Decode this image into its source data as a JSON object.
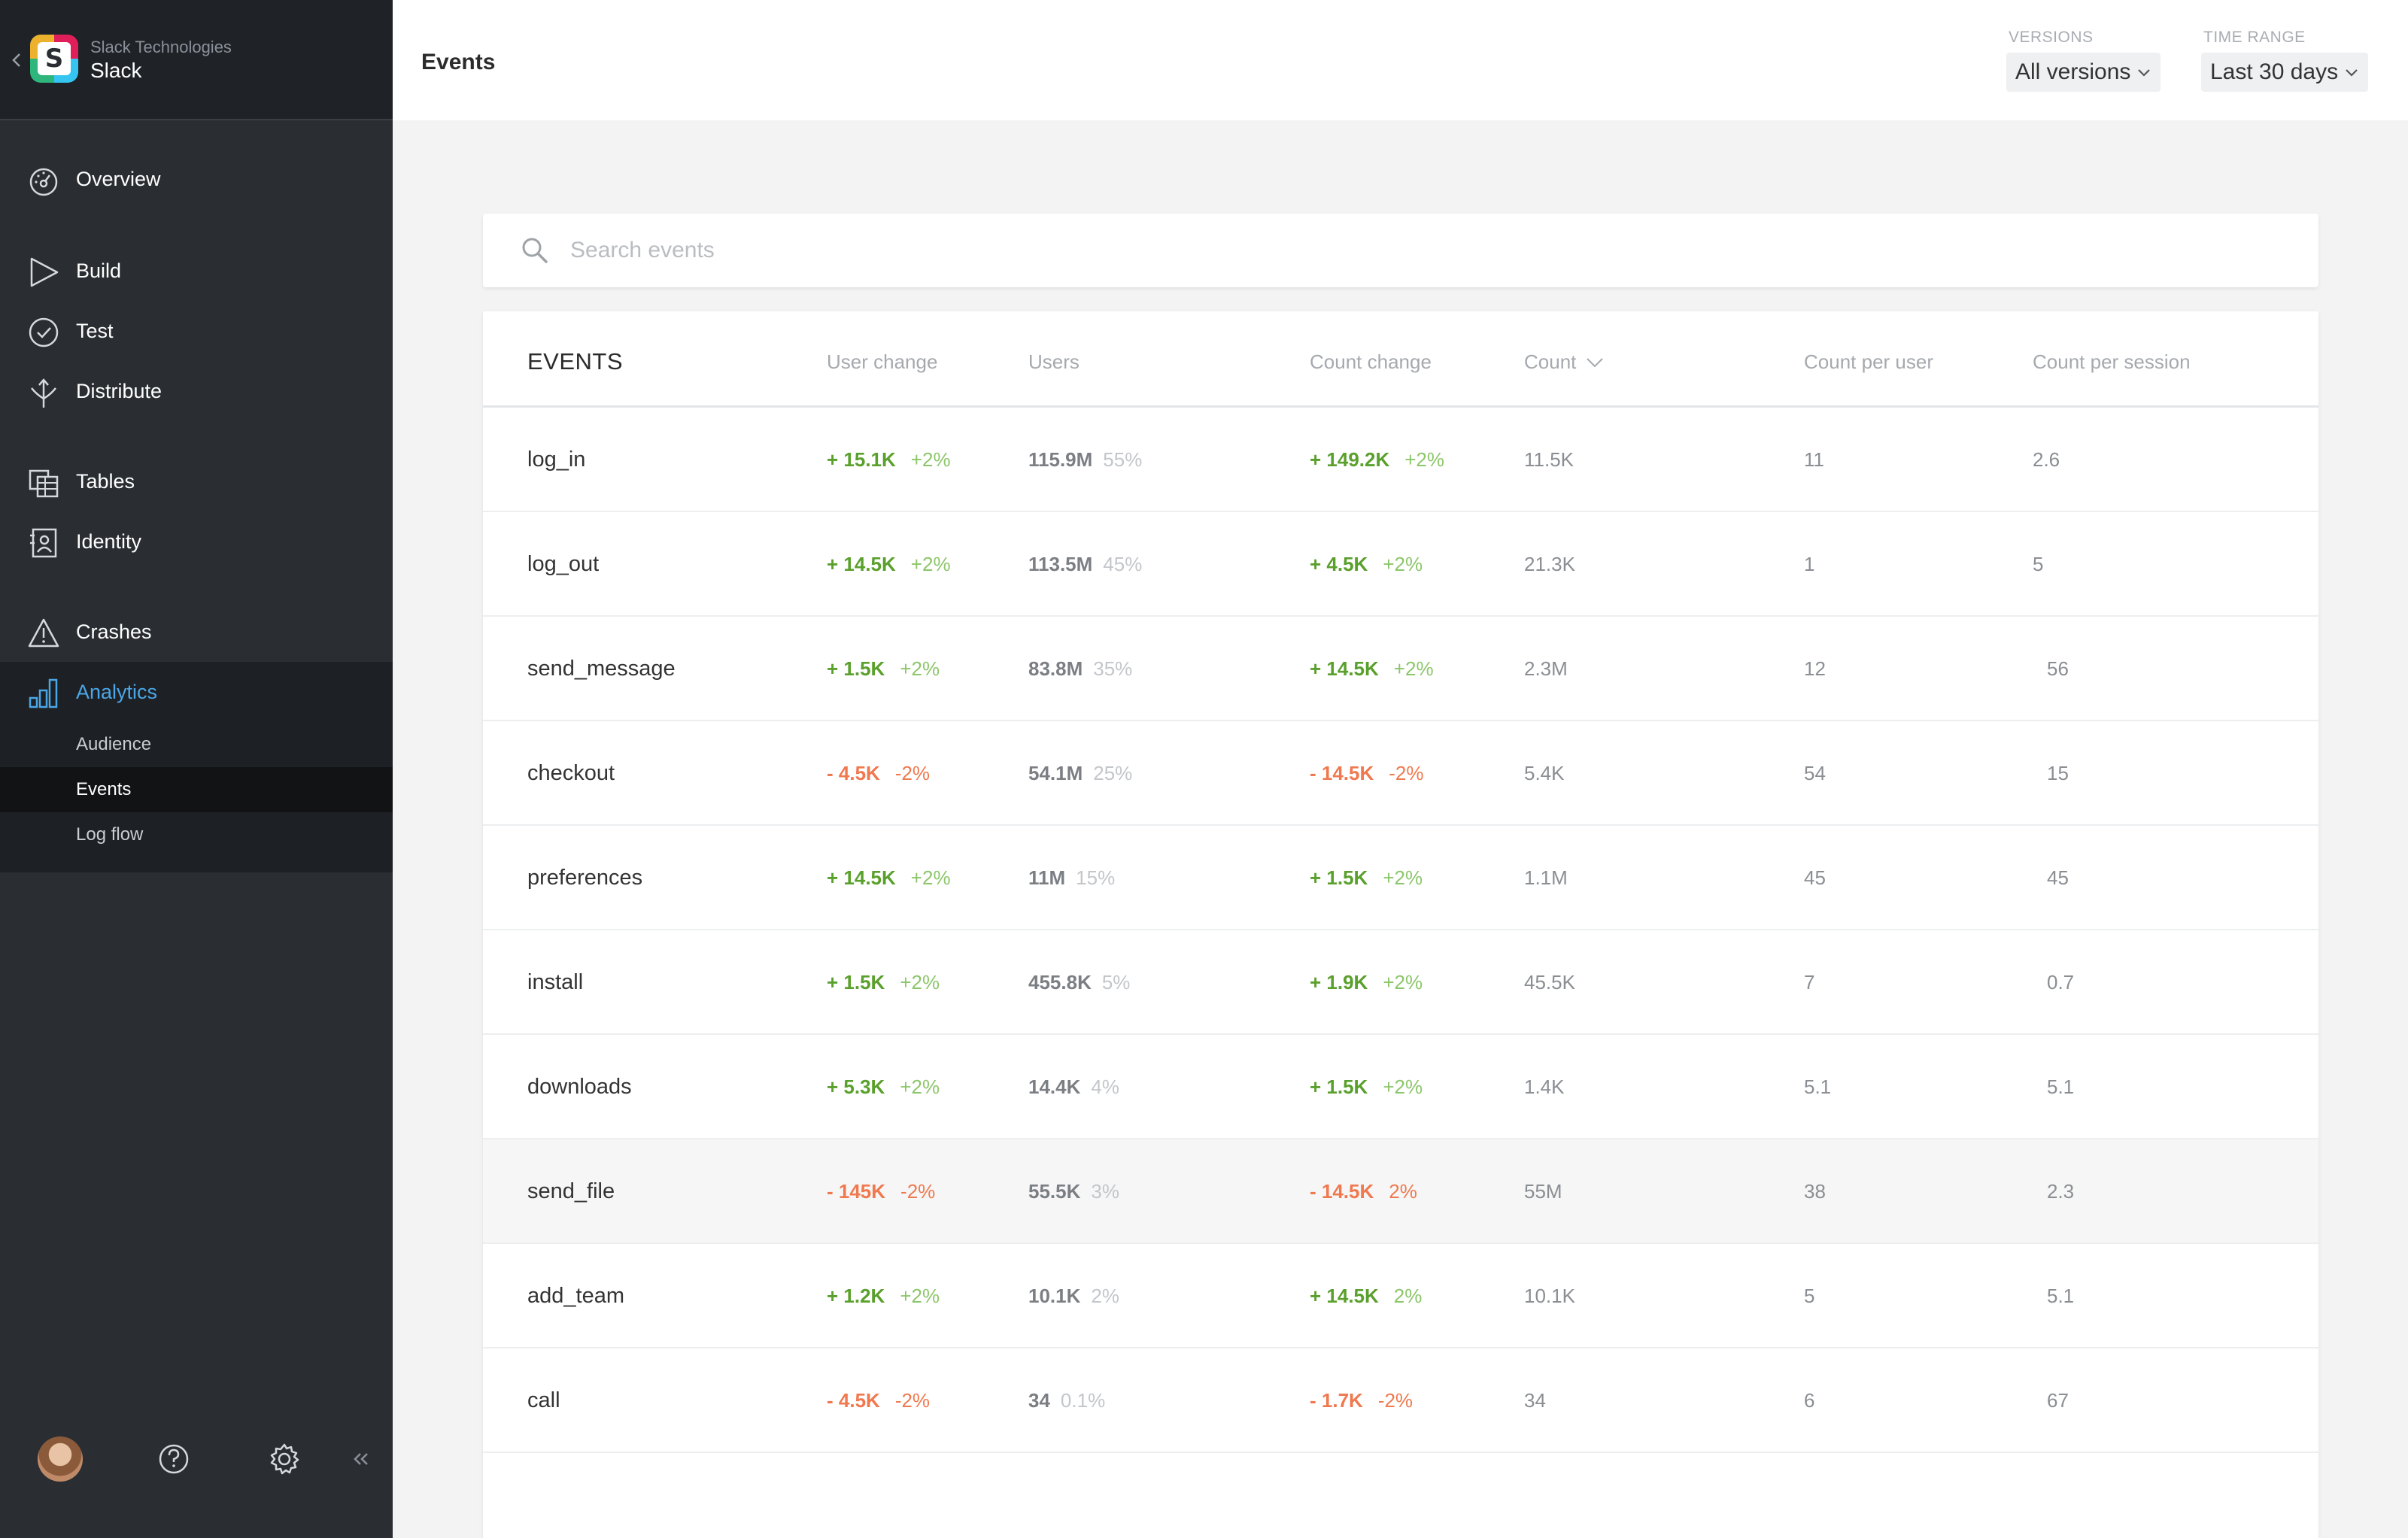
{
  "app": {
    "org": "Slack Technologies",
    "name": "Slack"
  },
  "sidebar": {
    "items": [
      {
        "label": "Overview",
        "icon": "dashboard-icon"
      },
      {
        "label": "Build",
        "icon": "play-icon"
      },
      {
        "label": "Test",
        "icon": "check-circle-icon"
      },
      {
        "label": "Distribute",
        "icon": "distribute-icon"
      },
      {
        "label": "Tables",
        "icon": "tables-icon"
      },
      {
        "label": "Identity",
        "icon": "identity-icon"
      },
      {
        "label": "Crashes",
        "icon": "warning-icon"
      },
      {
        "label": "Analytics",
        "icon": "bar-chart-icon",
        "active": true
      }
    ],
    "subitems": [
      {
        "label": "Audience"
      },
      {
        "label": "Events",
        "active": true
      },
      {
        "label": "Log flow"
      }
    ]
  },
  "header": {
    "title": "Events",
    "versions_label": "VERSIONS",
    "versions_value": "All versions",
    "time_label": "TIME RANGE",
    "time_value": "Last 30 days"
  },
  "search": {
    "placeholder": "Search events"
  },
  "table": {
    "columns": {
      "events": "EVENTS",
      "user_change": "User change",
      "users": "Users",
      "count_change": "Count change",
      "count": "Count",
      "count_per_user": "Count per user",
      "count_per_session": "Count per session"
    },
    "rows": [
      {
        "name": "log_in",
        "uc": "+ 15.1K",
        "ucp": "+2%",
        "uc_dir": "pos",
        "users": "115.9M",
        "users_pct": "55%",
        "cc": "+ 149.2K",
        "ccp": "+2%",
        "cc_dir": "pos",
        "count": "11.5K",
        "cpu": "11",
        "cps": "2.6"
      },
      {
        "name": "log_out",
        "uc": "+ 14.5K",
        "ucp": "+2%",
        "uc_dir": "pos",
        "users": "113.5M",
        "users_pct": "45%",
        "cc": "+ 4.5K",
        "ccp": "+2%",
        "cc_dir": "pos",
        "count": "21.3K",
        "cpu": "1",
        "cps": "5"
      },
      {
        "name": "send_message",
        "uc": "+ 1.5K",
        "ucp": "+2%",
        "uc_dir": "pos",
        "users": "83.8M",
        "users_pct": "35%",
        "cc": "+ 14.5K",
        "ccp": "+2%",
        "cc_dir": "pos",
        "count": "2.3M",
        "cpu": "12",
        "cps": "56"
      },
      {
        "name": "checkout",
        "uc": "- 4.5K",
        "ucp": "-2%",
        "uc_dir": "neg",
        "users": "54.1M",
        "users_pct": "25%",
        "cc": "- 14.5K",
        "ccp": "-2%",
        "cc_dir": "neg",
        "count": "5.4K",
        "cpu": "54",
        "cps": "15"
      },
      {
        "name": "preferences",
        "uc": "+ 14.5K",
        "ucp": "+2%",
        "uc_dir": "pos",
        "users": "11M",
        "users_pct": "15%",
        "cc": "+ 1.5K",
        "ccp": "+2%",
        "cc_dir": "pos",
        "count": "1.1M",
        "cpu": "45",
        "cps": "45"
      },
      {
        "name": "install",
        "uc": "+ 1.5K",
        "ucp": "+2%",
        "uc_dir": "pos",
        "users": "455.8K",
        "users_pct": "5%",
        "cc": "+ 1.9K",
        "ccp": "+2%",
        "cc_dir": "pos",
        "count": "45.5K",
        "cpu": "7",
        "cps": "0.7"
      },
      {
        "name": "downloads",
        "uc": "+ 5.3K",
        "ucp": "+2%",
        "uc_dir": "pos",
        "users": "14.4K",
        "users_pct": "4%",
        "cc": "+ 1.5K",
        "ccp": "+2%",
        "cc_dir": "pos",
        "count": "1.4K",
        "cpu": "5.1",
        "cps": "5.1"
      },
      {
        "name": "send_file",
        "uc": "- 145K",
        "ucp": "-2%",
        "uc_dir": "neg",
        "users": "55.5K",
        "users_pct": "3%",
        "cc": "- 14.5K",
        "ccp": "2%",
        "cc_dir": "neg",
        "count": "55M",
        "cpu": "38",
        "cps": "2.3",
        "highlighted": true
      },
      {
        "name": "add_team",
        "uc": "+ 1.2K",
        "ucp": "+2%",
        "uc_dir": "pos",
        "users": "10.1K",
        "users_pct": "2%",
        "cc": "+ 14.5K",
        "ccp": "2%",
        "cc_dir": "pos",
        "count": "10.1K",
        "cpu": "5",
        "cps": "5.1"
      },
      {
        "name": "call",
        "uc": "- 4.5K",
        "ucp": "-2%",
        "uc_dir": "neg",
        "users": "34",
        "users_pct": "0.1%",
        "cc": "- 1.7K",
        "ccp": "-2%",
        "cc_dir": "neg",
        "count": "34",
        "cpu": "6",
        "cps": "67"
      }
    ]
  },
  "colors": {
    "sidebar_bg": "#2a2e32",
    "active_accent": "#4ba6e6",
    "positive": "#5aa02c",
    "negative": "#f0794f"
  }
}
